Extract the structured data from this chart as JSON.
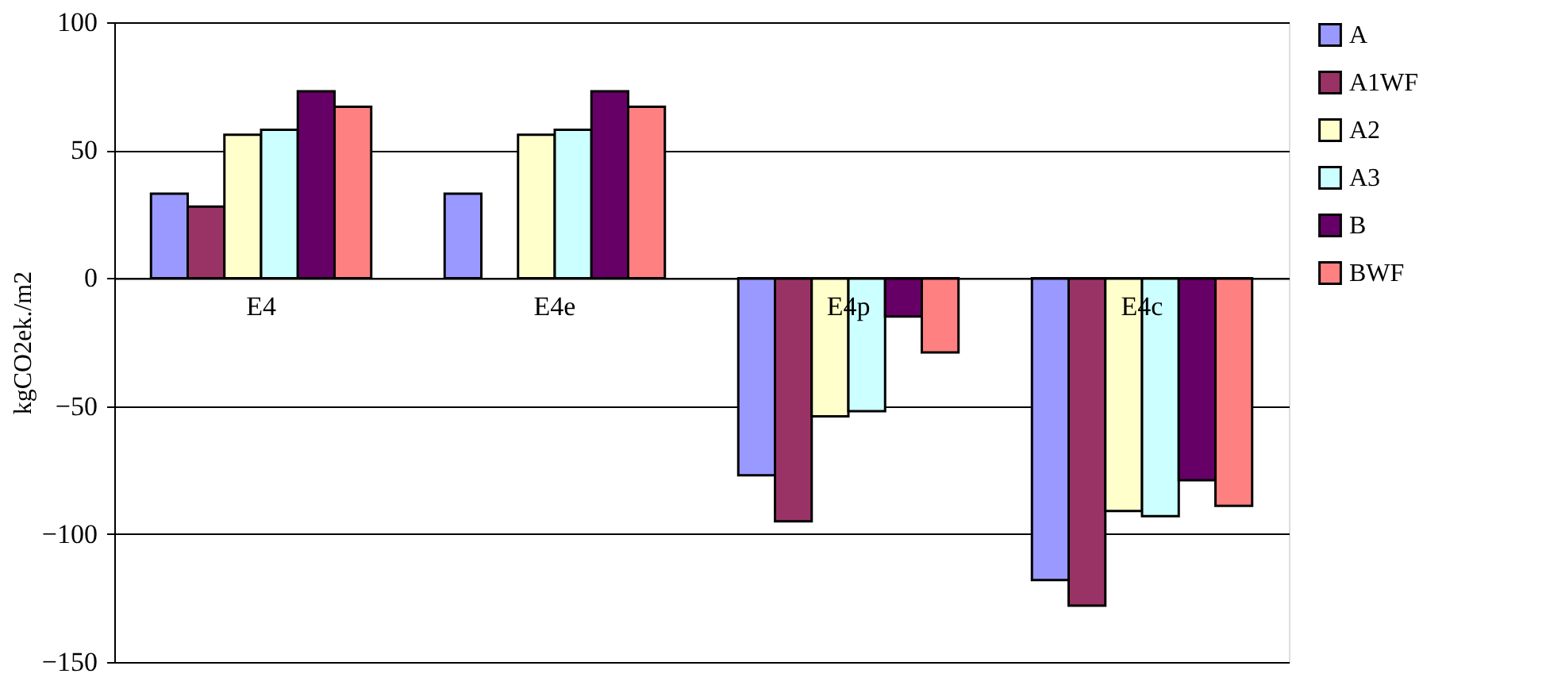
{
  "chart_data": {
    "type": "bar",
    "ylabel": "kgCO2ek./m2",
    "categories": [
      "E4",
      "E4e",
      "E4p",
      "E4c"
    ],
    "series": [
      {
        "name": "A",
        "color": "#9999ff",
        "values": [
          33,
          33,
          -77,
          -118
        ]
      },
      {
        "name": "A1WF",
        "color": "#993366",
        "values": [
          28,
          null,
          -95,
          -128
        ]
      },
      {
        "name": "A2",
        "color": "#ffffcc",
        "values": [
          56,
          56,
          -54,
          -91
        ]
      },
      {
        "name": "A3",
        "color": "#ccffff",
        "values": [
          58,
          58,
          -52,
          -93
        ]
      },
      {
        "name": "B",
        "color": "#660066",
        "values": [
          73,
          73,
          -15,
          -79
        ]
      },
      {
        "name": "BWF",
        "color": "#ff8080",
        "values": [
          67,
          67,
          -29,
          -89
        ]
      }
    ],
    "ylim": [
      -150,
      100
    ],
    "yticks": [
      -150,
      -100,
      -50,
      0,
      50,
      100
    ],
    "grid": "y",
    "legend": "right"
  }
}
